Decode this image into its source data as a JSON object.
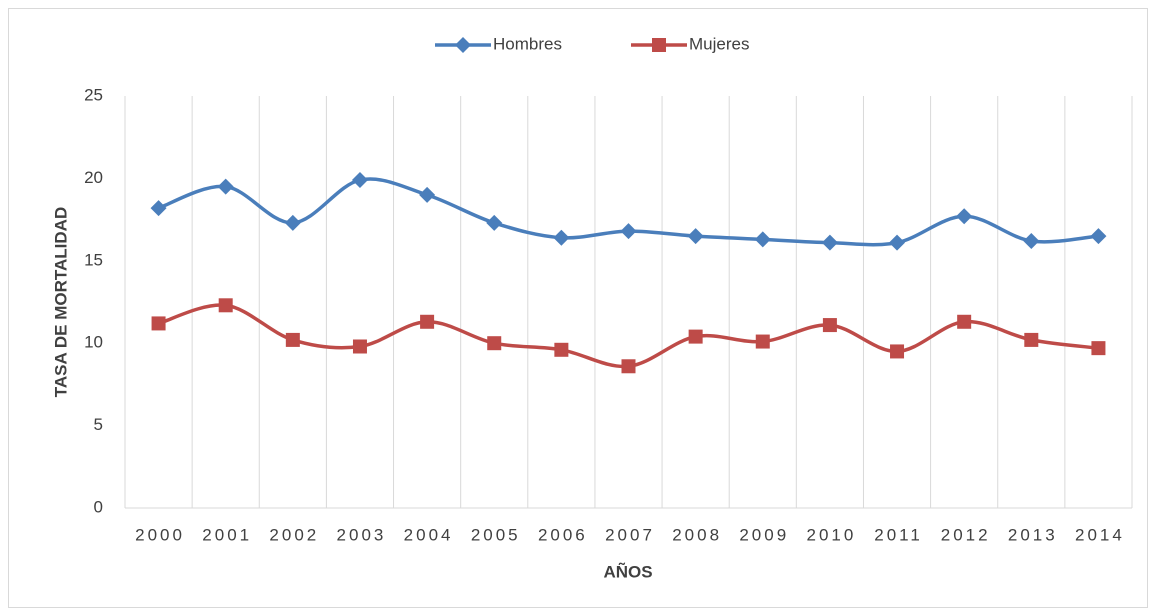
{
  "chart_data": {
    "type": "line",
    "x_label": "AÑOS",
    "y_label": "TASA DE MORTALIDAD",
    "categories": [
      "2000",
      "2001",
      "2002",
      "2003",
      "2004",
      "2005",
      "2006",
      "2007",
      "2008",
      "2009",
      "2010",
      "2011",
      "2012",
      "2013",
      "2014"
    ],
    "series": [
      {
        "name": "Hombres",
        "color": "#4a7ebb",
        "marker": "diamond",
        "values": [
          18.2,
          19.5,
          17.3,
          19.9,
          19.0,
          17.3,
          16.4,
          16.8,
          16.5,
          16.3,
          16.1,
          16.1,
          17.7,
          16.2,
          16.5
        ]
      },
      {
        "name": "Mujeres",
        "color": "#be4b48",
        "marker": "square",
        "values": [
          11.2,
          12.3,
          10.2,
          9.8,
          11.3,
          10.0,
          9.6,
          8.6,
          10.4,
          10.1,
          11.1,
          9.5,
          11.3,
          10.2,
          9.7
        ]
      }
    ],
    "ylim": [
      0,
      25
    ],
    "yticks": [
      0,
      5,
      10,
      15,
      20,
      25
    ],
    "smooth": true,
    "grid": "vertical",
    "legend": "top"
  }
}
